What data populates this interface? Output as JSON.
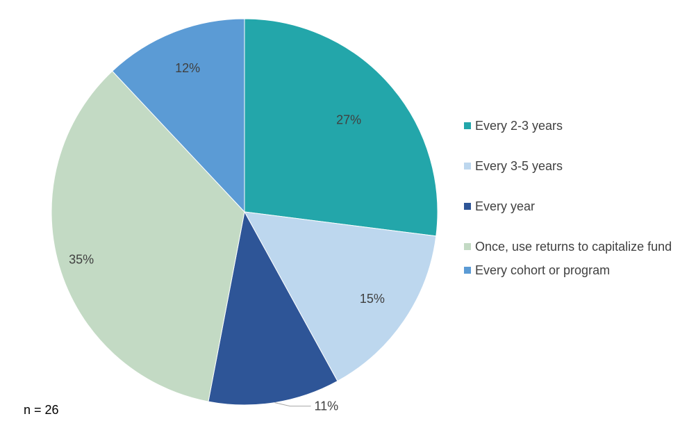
{
  "chart_data": {
    "type": "pie",
    "title": "",
    "slices": [
      {
        "label": "Every 2-3 years",
        "value": 27,
        "value_label": "27%",
        "color": "#23A6AA"
      },
      {
        "label": "Every 3-5 years",
        "value": 15,
        "value_label": "15%",
        "color": "#BDD7EE"
      },
      {
        "label": "Every year",
        "value": 11,
        "value_label": "11%",
        "color": "#2E5597"
      },
      {
        "label": "Once, use returns to capitalize fund",
        "value": 35,
        "value_label": "35%",
        "color": "#C3DAC4"
      },
      {
        "label": "Every cohort or program",
        "value": 12,
        "value_label": "12%",
        "color": "#5B9BD5"
      }
    ],
    "legend_position": "right",
    "start_angle": "12 o'clock",
    "direction": "clockwise"
  },
  "note": "n = 26"
}
